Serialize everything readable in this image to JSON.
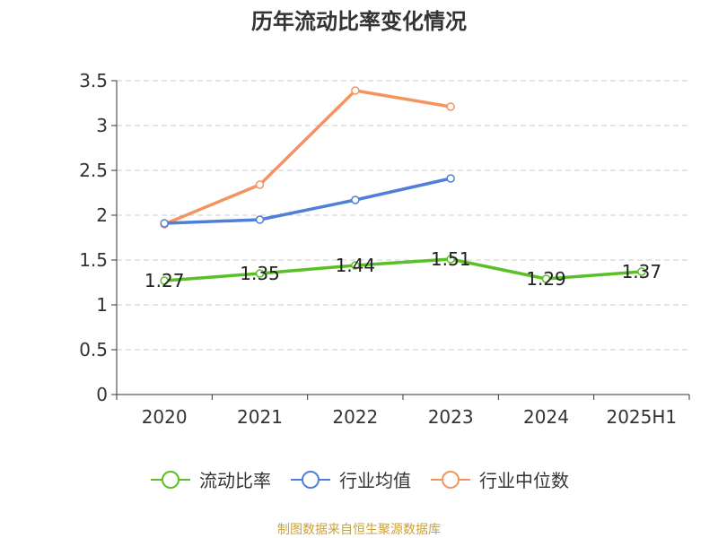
{
  "colors": {
    "current_ratio": "#5bc025",
    "industry_avg": "#4f7fd9",
    "industry_median": "#f59460",
    "grid": "#cccccc",
    "axis": "#333333",
    "source": "#c8a23c"
  },
  "source_note": "制图数据来自恒生聚源数据库",
  "chart_data": {
    "type": "line",
    "title": "历年流动比率变化情况",
    "xlabel": "",
    "ylabel": "",
    "categories": [
      "2020",
      "2021",
      "2022",
      "2023",
      "2024",
      "2025H1"
    ],
    "ylim": [
      0,
      3.5
    ],
    "yticks": [
      "0",
      "0.5",
      "1",
      "1.5",
      "2",
      "2.5",
      "3",
      "3.5"
    ],
    "grid": true,
    "legend_position": "bottom",
    "series": [
      {
        "name": "流动比率",
        "color_key": "current_ratio",
        "values": [
          1.27,
          1.35,
          1.44,
          1.51,
          1.29,
          1.37
        ],
        "labels": [
          "1.27",
          "1.35",
          "1.44",
          "1.51",
          "1.29",
          "1.37"
        ]
      },
      {
        "name": "行业均值",
        "color_key": "industry_avg",
        "values": [
          1.91,
          1.95,
          2.17,
          2.41,
          null,
          null
        ]
      },
      {
        "name": "行业中位数",
        "color_key": "industry_median",
        "values": [
          1.9,
          2.34,
          3.39,
          3.21,
          null,
          null
        ]
      }
    ]
  }
}
